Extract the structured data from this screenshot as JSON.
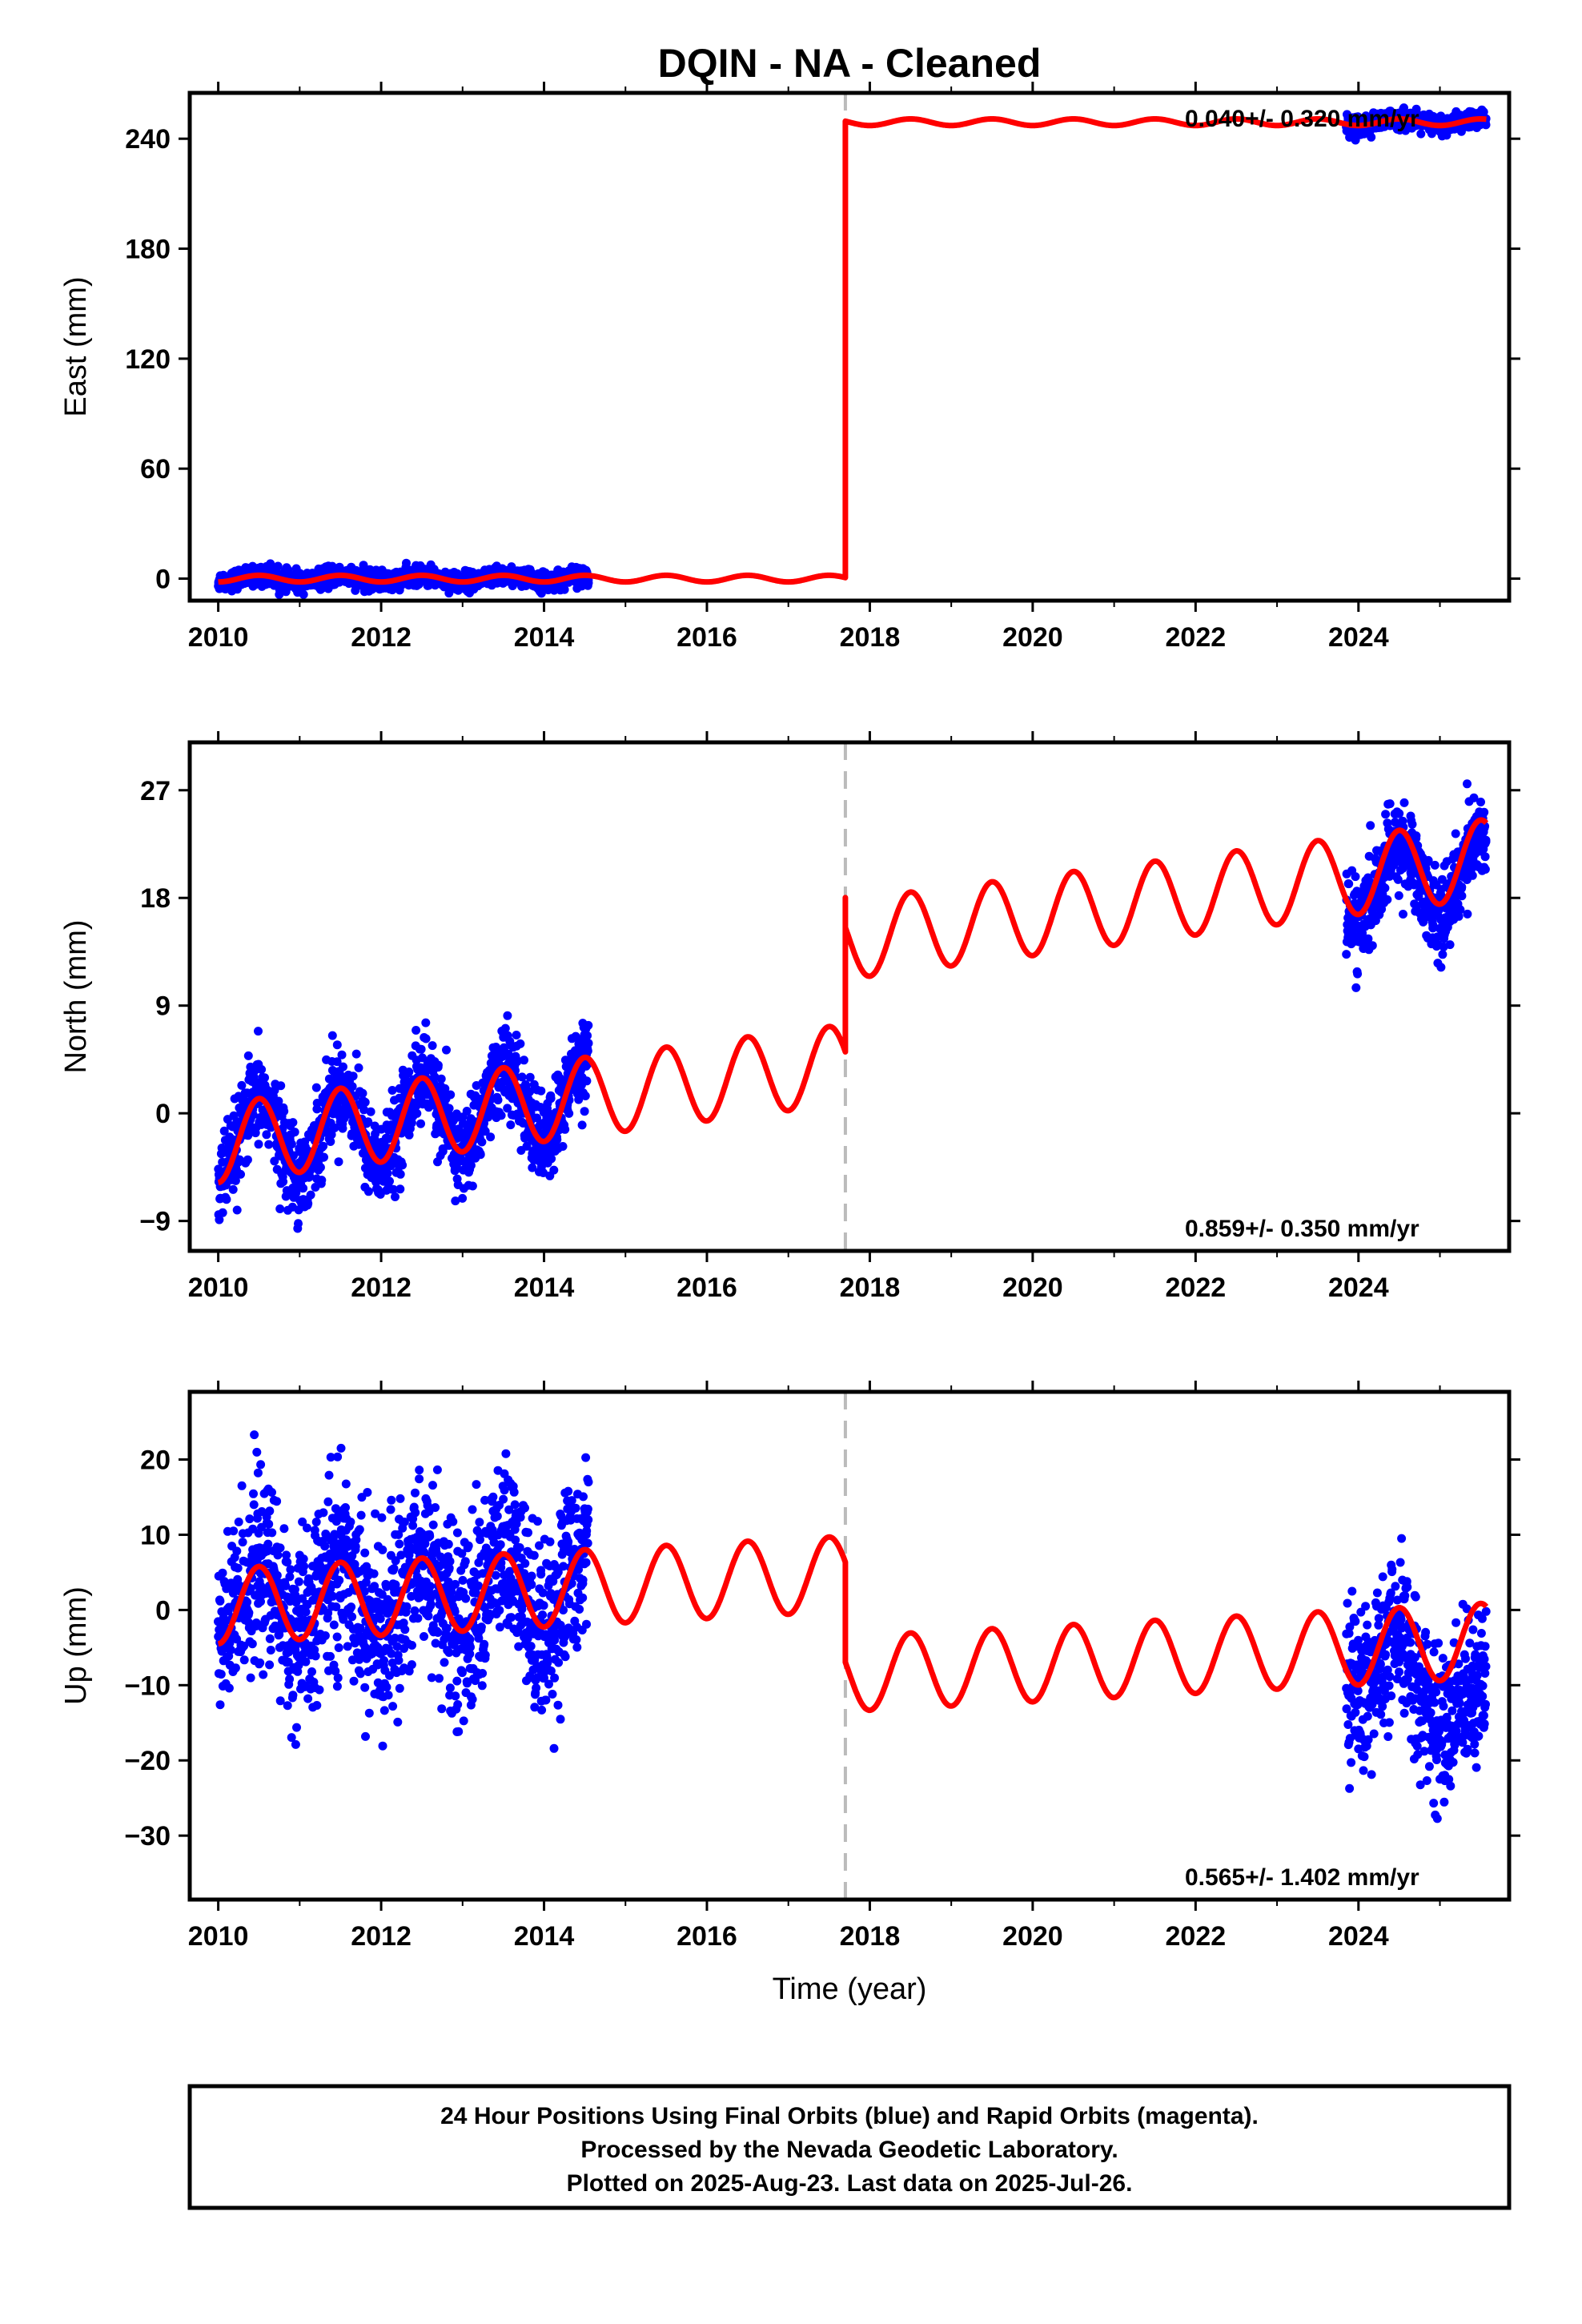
{
  "title": "DQIN  - NA - Cleaned",
  "footer": {
    "lines": [
      "24 Hour Positions Using Final Orbits (blue) and Rapid Orbits (magenta).",
      "Processed by the Nevada Geodetic Laboratory.",
      "Plotted on 2025-Aug-23. Last data on 2025-Jul-26."
    ]
  },
  "colors": {
    "data": "#0000ff",
    "model": "#ff0000",
    "offset_line": "#bbbbbb",
    "axes": "#000000"
  },
  "chart_data": [
    {
      "type": "scatter",
      "component": "east",
      "ylabel": "East (mm)",
      "xlabel": "",
      "xlim": [
        2009.65,
        2025.85
      ],
      "ylim": [
        -12,
        265
      ],
      "yticks": [
        0,
        60,
        120,
        180,
        240
      ],
      "xticks": [
        2010,
        2012,
        2014,
        2016,
        2018,
        2020,
        2022,
        2024
      ],
      "rate_text": "0.040+/- 0.320 mm/yr",
      "offset_epoch": 2017.7,
      "data_segments": [
        {
          "start": 2010.0,
          "end": 2014.55,
          "level": 0,
          "slope": 0,
          "amplitude": 1.5,
          "scatter": 2.5
        },
        {
          "start": 2023.85,
          "end": 2025.57,
          "level": 249,
          "slope": 0,
          "amplitude": 1.5,
          "scatter": 2.5
        }
      ],
      "model": {
        "level_before": 0,
        "level_after": 249,
        "trend_before": 0,
        "trend_after": 0,
        "amplitude": 1.8,
        "jump_spike": 0
      }
    },
    {
      "type": "scatter",
      "component": "north",
      "ylabel": "North (mm)",
      "xlabel": "",
      "xlim": [
        2009.65,
        2025.85
      ],
      "ylim": [
        -11.5,
        31
      ],
      "yticks": [
        -9,
        0,
        9,
        18,
        27
      ],
      "xticks": [
        2010,
        2012,
        2014,
        2016,
        2018,
        2020,
        2022,
        2024
      ],
      "rate_text": "0.859+/- 0.350 mm/yr",
      "offset_epoch": 2017.7,
      "data_segments": [
        {
          "start": 2010.0,
          "end": 2014.55,
          "level": -2.5,
          "slope": 0.86,
          "amplitude": 3.3,
          "scatter": 1.8
        },
        {
          "start": 2023.85,
          "end": 2025.57,
          "level": 18.8,
          "slope": 0.86,
          "amplitude": 3.0,
          "scatter": 1.8
        }
      ],
      "model": {
        "level_before": -2.5,
        "level_after": 14.5,
        "trend_before": 0.86,
        "trend_after": 0.86,
        "amplitude": 3.3,
        "jump_spike": 2.5
      }
    },
    {
      "type": "scatter",
      "component": "up",
      "ylabel": "Up (mm)",
      "xlabel": "Time (year)",
      "xlim": [
        2009.65,
        2025.85
      ],
      "ylim": [
        -38.5,
        29
      ],
      "yticks": [
        -30,
        -20,
        -10,
        0,
        10,
        20
      ],
      "xticks": [
        2010,
        2012,
        2014,
        2016,
        2018,
        2020,
        2022,
        2024
      ],
      "rate_text": "0.565+/- 1.402 mm/yr",
      "offset_epoch": 2017.7,
      "data_segments": [
        {
          "start": 2010.0,
          "end": 2014.55,
          "level": 0.5,
          "slope": 0.56,
          "amplitude": 5.0,
          "scatter": 6.0
        },
        {
          "start": 2023.85,
          "end": 2025.57,
          "level": -5.5,
          "slope": -5.0,
          "amplitude": 4.5,
          "scatter": 5.0
        }
      ],
      "model": {
        "level_before": 0.5,
        "level_after": -8.5,
        "trend_before": 0.56,
        "trend_after": 0.56,
        "amplitude": 5.0,
        "jump_spike": 0
      }
    }
  ]
}
